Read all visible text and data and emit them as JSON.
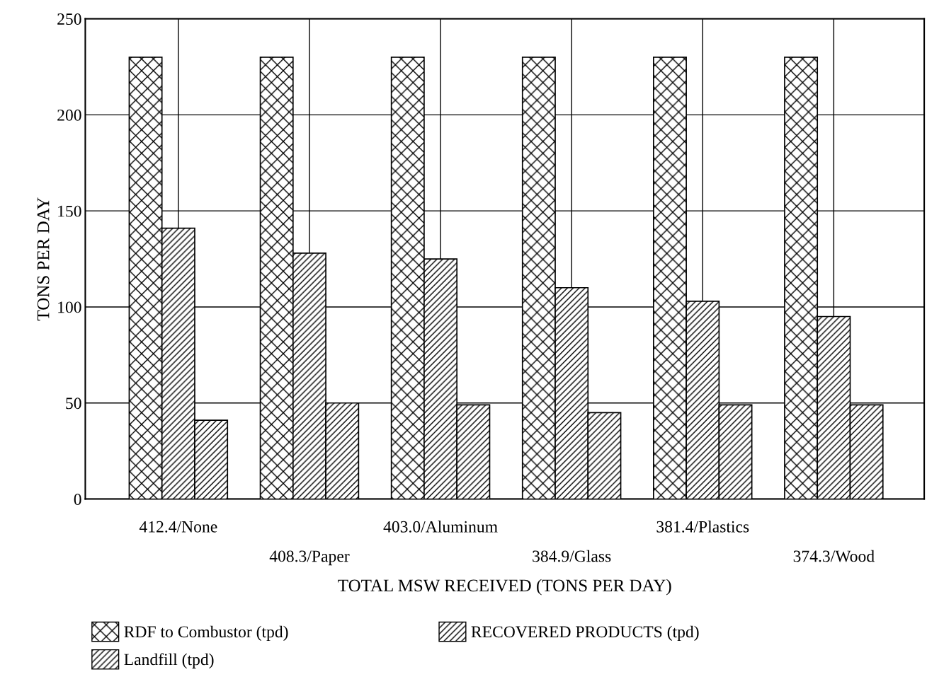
{
  "chart_data": {
    "type": "bar",
    "xlabel": "TOTAL MSW RECEIVED (TONS PER DAY)",
    "ylabel": "TONS PER DAY",
    "categories": [
      "412.4/None",
      "408.3/Paper",
      "403.0/Aluminum",
      "384.9/Glass",
      "381.4/Plastics",
      "374.3/Wood"
    ],
    "series": [
      {
        "name": "RDF to Combustor (tpd)",
        "color": "#000000",
        "values": [
          230,
          230,
          230,
          230,
          230,
          230
        ]
      },
      {
        "name": "RECOVERED PRODUCTS (tpd)",
        "color": "#000000",
        "values": [
          141,
          128,
          125,
          110,
          103,
          95
        ]
      },
      {
        "name": "Landfill (tpd)",
        "color": "#000000",
        "values": [
          41,
          50,
          49,
          45,
          49,
          49
        ]
      }
    ],
    "ylim": [
      0,
      250
    ],
    "yticks": [
      0,
      50,
      100,
      150,
      200,
      250
    ],
    "grid": true,
    "legend": "bottom"
  }
}
